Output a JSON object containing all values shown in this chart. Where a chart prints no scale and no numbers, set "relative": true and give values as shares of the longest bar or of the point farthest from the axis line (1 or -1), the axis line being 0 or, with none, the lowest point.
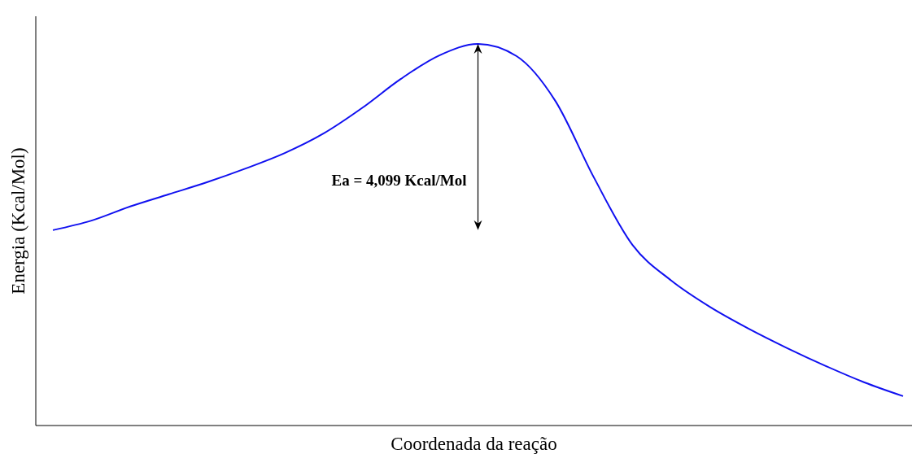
{
  "chart_data": {
    "type": "line",
    "relative": true,
    "xlabel": "Coordenada da reação",
    "ylabel": "Energia (Kcal/Mol)",
    "annotations": [
      "Ea = 4,099 Kcal/Mol"
    ],
    "categories": [
      null,
      null,
      null,
      null,
      null,
      null,
      null,
      null,
      null,
      null,
      null,
      null,
      null,
      null,
      null,
      null,
      null,
      null,
      null,
      null,
      null,
      null,
      null
    ],
    "series": [
      {
        "color": "#1010f0",
        "values": [
          0.512,
          0.537,
          0.574,
          0.606,
          0.638,
          0.674,
          0.714,
          0.765,
          0.832,
          0.908,
          0.97,
          1,
          0.968,
          0.851,
          0.65,
          0.473,
          0.38,
          0.311,
          0.254,
          0.203,
          0.156,
          0.113,
          0.077
        ]
      }
    ],
    "marker": "none",
    "line_style": "solid"
  }
}
